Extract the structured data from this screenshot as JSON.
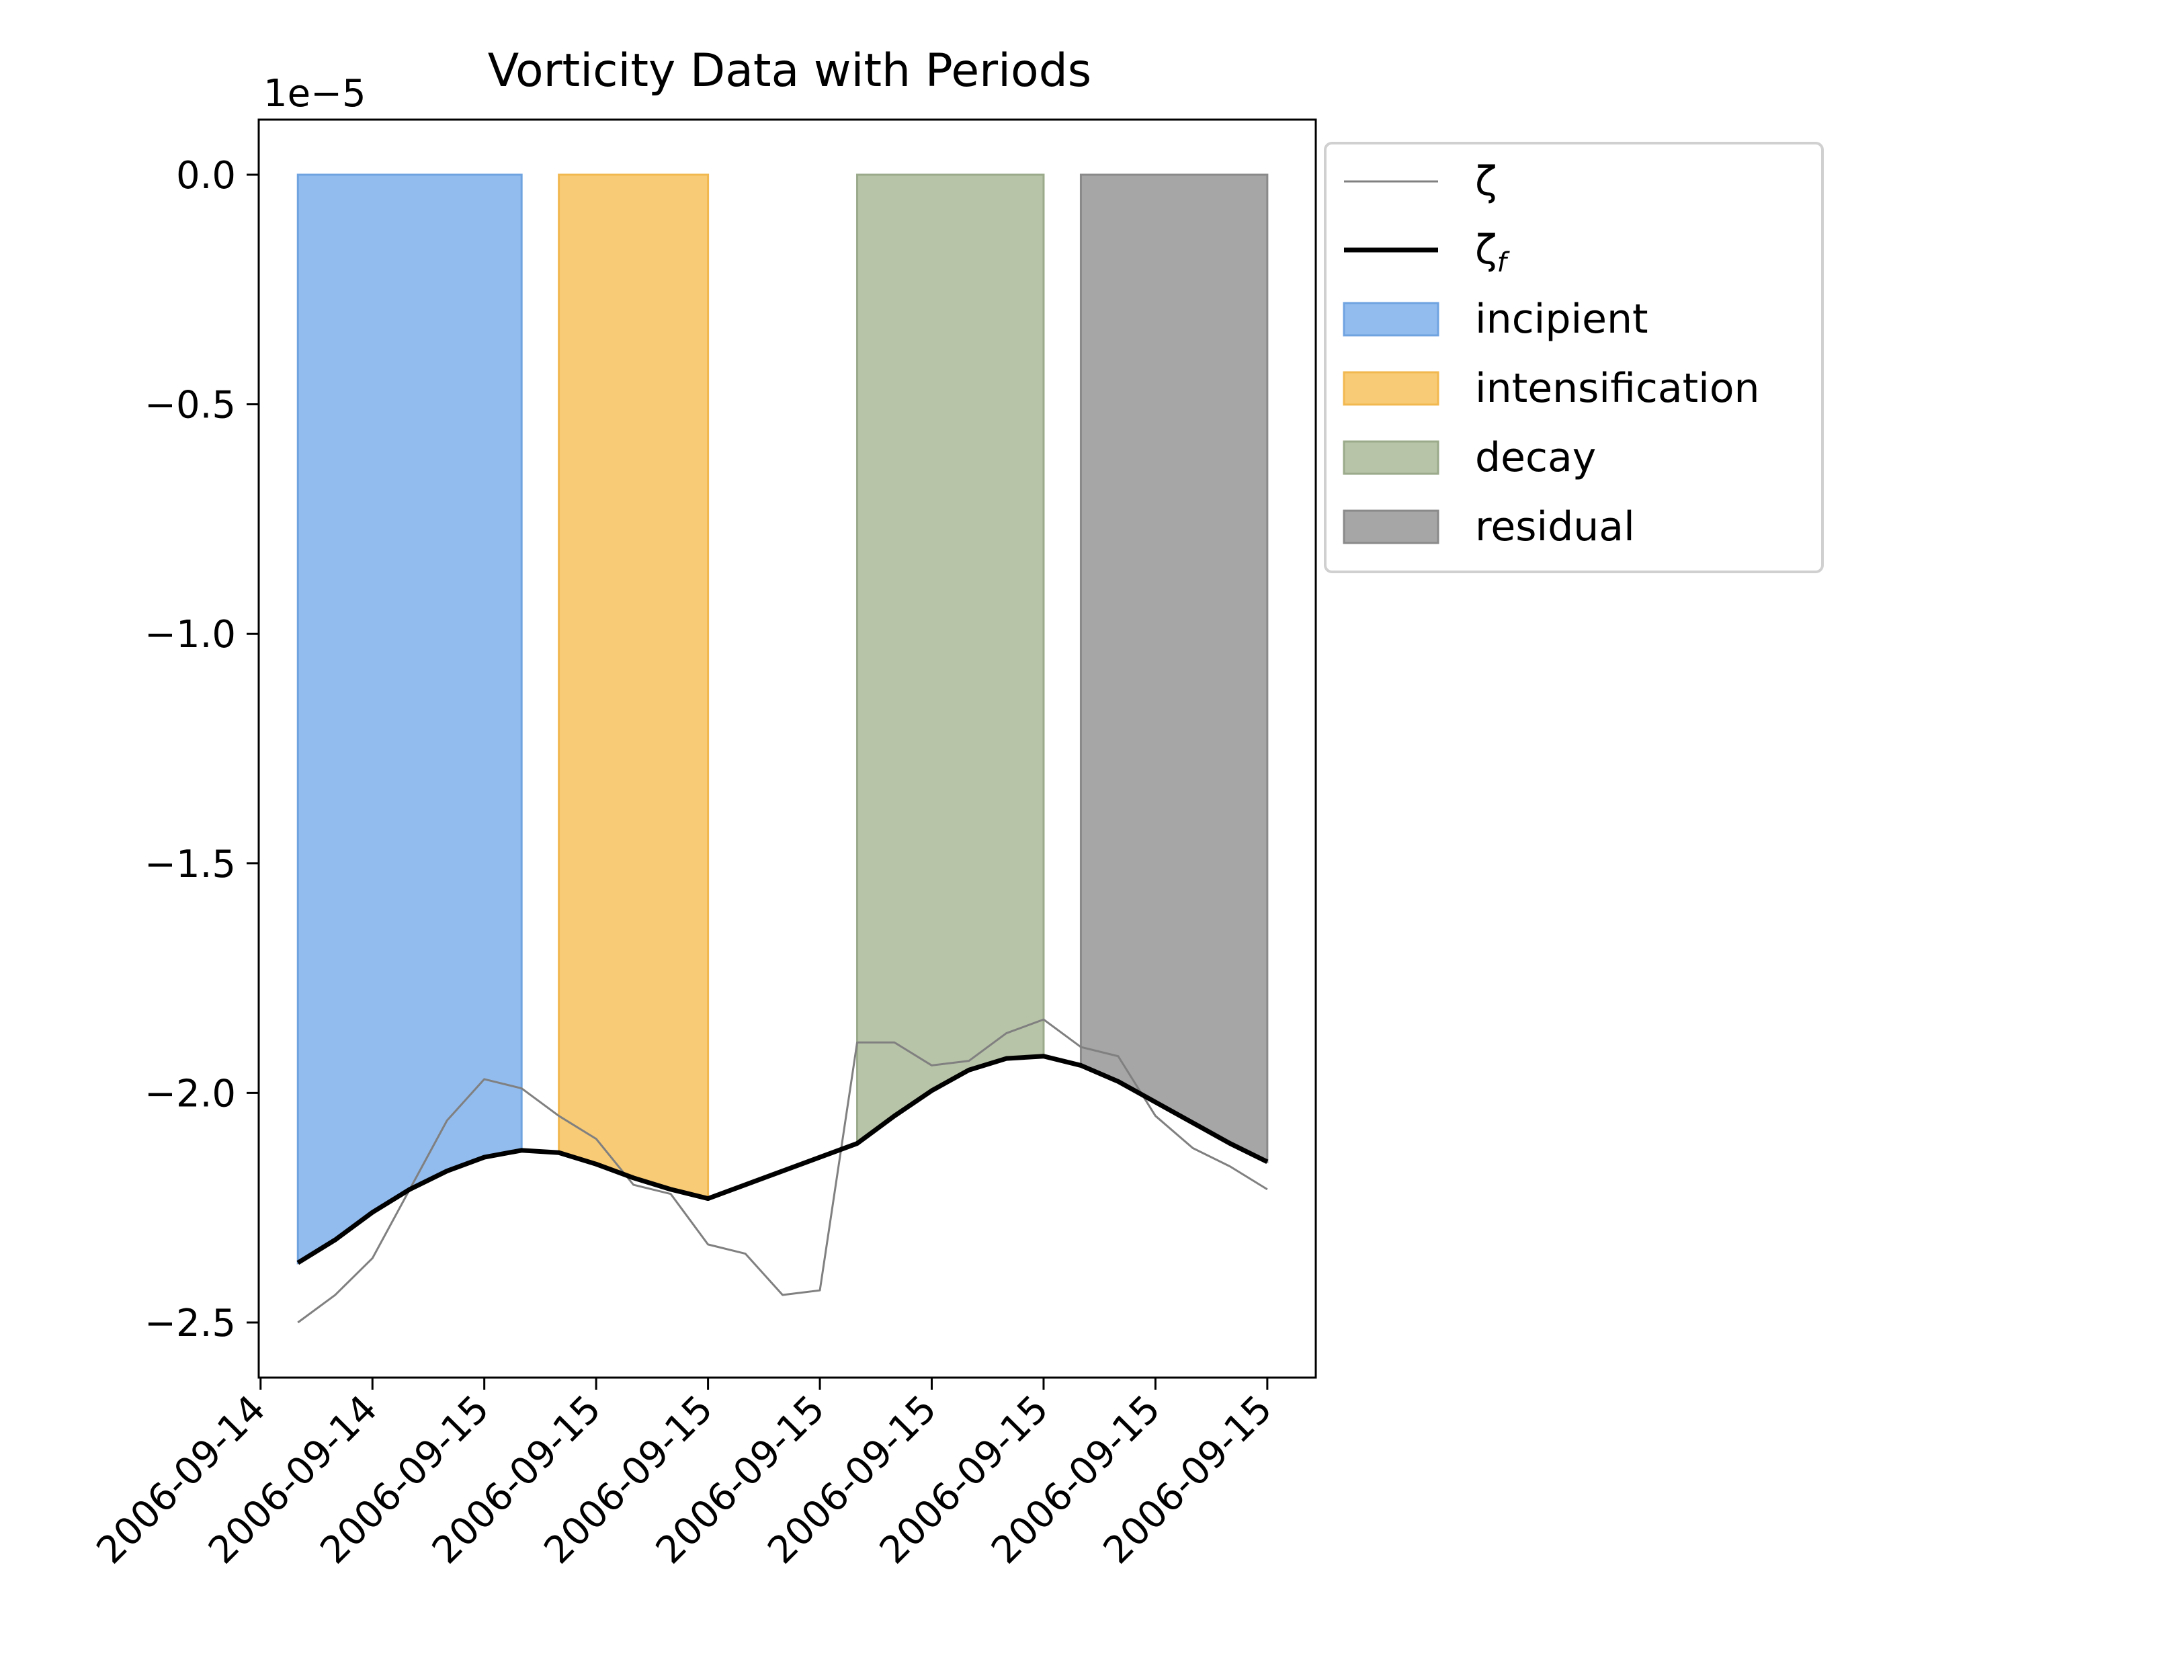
{
  "chart_data": {
    "type": "line",
    "title": "Vorticity Data with Periods",
    "xlabel": "",
    "ylabel": "",
    "y_offset_label": "1e−5",
    "ylim": [
      -2.62,
      0.12
    ],
    "yticks": [
      {
        "value": 0.0,
        "label": "0.0"
      },
      {
        "value": -0.5,
        "label": "−0.5"
      },
      {
        "value": -1.0,
        "label": "−1.0"
      },
      {
        "value": -1.5,
        "label": "−1.5"
      },
      {
        "value": -2.0,
        "label": "−2.0"
      },
      {
        "value": -2.5,
        "label": "−2.5"
      }
    ],
    "xlim": [
      -1.05,
      27.3
    ],
    "xticks": [
      {
        "pos": -1,
        "label": "2006-09-14"
      },
      {
        "pos": 2,
        "label": "2006-09-14"
      },
      {
        "pos": 5,
        "label": "2006-09-15"
      },
      {
        "pos": 8,
        "label": "2006-09-15"
      },
      {
        "pos": 11,
        "label": "2006-09-15"
      },
      {
        "pos": 14,
        "label": "2006-09-15"
      },
      {
        "pos": 17,
        "label": "2006-09-15"
      },
      {
        "pos": 20,
        "label": "2006-09-15"
      },
      {
        "pos": 23,
        "label": "2006-09-15"
      },
      {
        "pos": 26,
        "label": "2006-09-15"
      }
    ],
    "x": [
      0,
      1,
      2,
      3,
      4,
      5,
      6,
      7,
      8,
      9,
      10,
      11,
      12,
      13,
      14,
      15,
      16,
      17,
      18,
      19,
      20,
      21,
      22,
      23,
      24,
      25,
      26
    ],
    "series": [
      {
        "name": "ζ",
        "color": "#808080",
        "values": [
          -2.5,
          -2.44,
          -2.36,
          -2.21,
          -2.06,
          -1.97,
          -1.99,
          -2.05,
          -2.1,
          -2.2,
          -2.22,
          -2.33,
          -2.35,
          -2.44,
          -2.43,
          -1.89,
          -1.89,
          -1.94,
          -1.93,
          -1.87,
          -1.84,
          -1.9,
          -1.92,
          -2.05,
          -2.12,
          -2.16,
          -2.21
        ]
      },
      {
        "name": "ζ",
        "name_subscript": "f",
        "color": "#000000",
        "values": [
          -2.37,
          -2.32,
          -2.26,
          -2.21,
          -2.17,
          -2.14,
          -2.125,
          -2.13,
          -2.155,
          -2.185,
          -2.21,
          -2.23,
          -2.2,
          -2.17,
          -2.14,
          -2.11,
          -2.05,
          -1.995,
          -1.95,
          -1.925,
          -1.92,
          -1.94,
          -1.975,
          -2.02,
          -2.065,
          -2.11,
          -2.15
        ]
      }
    ],
    "periods": [
      {
        "name": "incipient",
        "x_start": 0,
        "x_end": 6,
        "color": "#93bcee",
        "edge": "#6fa3e0"
      },
      {
        "name": "intensification",
        "x_start": 7,
        "x_end": 11,
        "color": "#f8cb76",
        "edge": "#f2b850"
      },
      {
        "name": "decay",
        "x_start": 15,
        "x_end": 20,
        "color": "#b8c4a8",
        "edge": "#9aaa8a"
      },
      {
        "name": "residual",
        "x_start": 21,
        "x_end": 26,
        "color": "#a6a6a6",
        "edge": "#8a8a8a"
      }
    ],
    "grid": false,
    "legend_placement": "outside-upper-right"
  }
}
